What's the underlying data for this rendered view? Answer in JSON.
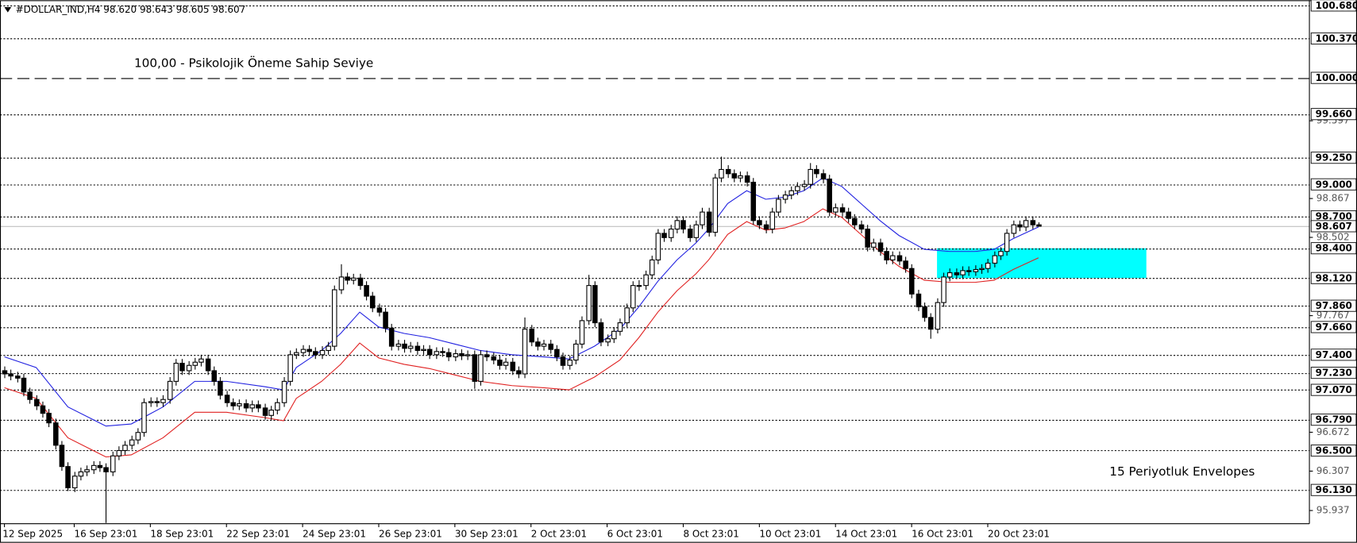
{
  "chart_data": {
    "type": "candlestick",
    "title": "#DOLLAR_IND,H4  98.620 98.643 98.605 98.607",
    "up_color": "#ffffff",
    "down_color": "#000000",
    "wick_color": "#000000",
    "ylim": [
      95.813,
      100.729
    ],
    "xlim": [
      -0.7,
      205.7
    ],
    "yticks": [
      99.597,
      98.867,
      98.502,
      97.767,
      96.672,
      96.307,
      95.937
    ],
    "levels": [
      {
        "value": 100.68,
        "label": "100.680",
        "style": "dotted"
      },
      {
        "value": 100.37,
        "label": "100.370",
        "style": "dotted"
      },
      {
        "value": 100,
        "label": "100.000",
        "style": "dashed"
      },
      {
        "value": 99.66,
        "label": "99.660",
        "style": "dotted"
      },
      {
        "value": 99.25,
        "label": "99.250",
        "style": "dotted"
      },
      {
        "value": 99,
        "label": "99.000",
        "style": "dotted"
      },
      {
        "value": 98.7,
        "label": "98.700",
        "style": "dotted"
      },
      {
        "value": 98.4,
        "label": "98.400",
        "style": "dotted"
      },
      {
        "value": 98.12,
        "label": "98.120",
        "style": "dotted"
      },
      {
        "value": 97.86,
        "label": "97.860",
        "style": "dotted"
      },
      {
        "value": 97.66,
        "label": "97.660",
        "style": "dotted"
      },
      {
        "value": 97.4,
        "label": "97.400",
        "style": "dotted"
      },
      {
        "value": 97.23,
        "label": "97.230",
        "style": "dotted"
      },
      {
        "value": 97.07,
        "label": "97.070",
        "style": "dotted"
      },
      {
        "value": 96.79,
        "label": "96.790",
        "style": "dotted"
      },
      {
        "value": 96.5,
        "label": "96.500",
        "style": "dotted"
      },
      {
        "value": 96.13,
        "label": "96.130",
        "style": "dotted"
      }
    ],
    "current": {
      "value": 98.607,
      "label": "98.607",
      "color": "#c0c0c0"
    },
    "xticks": [
      {
        "value": 0,
        "label": "12 Sep 2025"
      },
      {
        "value": 11,
        "label": "16 Sep 23:01"
      },
      {
        "value": 23,
        "label": "18 Sep 23:01"
      },
      {
        "value": 35,
        "label": "22 Sep 23:01"
      },
      {
        "value": 47,
        "label": "24 Sep 23:01"
      },
      {
        "value": 59,
        "label": "26 Sep 23:01"
      },
      {
        "value": 71,
        "label": "30 Sep 23:01"
      },
      {
        "value": 83,
        "label": "2 Oct 23:01"
      },
      {
        "value": 95,
        "label": "6 Oct 23:01"
      },
      {
        "value": 107,
        "label": "8 Oct 23:01"
      },
      {
        "value": 119,
        "label": "10 Oct 23:01"
      },
      {
        "value": 131,
        "label": "14 Oct 23:01"
      },
      {
        "value": 143,
        "label": "16 Oct 23:01"
      },
      {
        "value": 155,
        "label": "20 Oct 23:01"
      }
    ],
    "zone": {
      "color": "#00ffff",
      "ylim": [
        98.12,
        98.4
      ],
      "xlim": [
        147,
        180
      ]
    },
    "annotations": [
      {
        "text": "100,00 -  Psikolojik Öneme Sahip Seviye",
        "color": "#1a9a1a"
      },
      {
        "text": "15 Periyotluk Envelopes",
        "color": "#4a4aa8"
      }
    ],
    "envelopes": [
      {
        "color": "#2020e0",
        "x": [
          0,
          5,
          10,
          16,
          20,
          25,
          30,
          35,
          41,
          44,
          46,
          50,
          53,
          56,
          59,
          63,
          67,
          71,
          75,
          80,
          85,
          89,
          93,
          97,
          100,
          103,
          106,
          109,
          111,
          114,
          117,
          120,
          123,
          126,
          129,
          132,
          135,
          138,
          141,
          145,
          149,
          153,
          156,
          159,
          163
        ],
        "values": [
          97.38,
          97.28,
          96.91,
          96.73,
          96.75,
          96.91,
          97.15,
          97.15,
          97.1,
          97.07,
          97.28,
          97.44,
          97.6,
          97.8,
          97.66,
          97.6,
          97.56,
          97.5,
          97.44,
          97.4,
          97.38,
          97.36,
          97.48,
          97.64,
          97.85,
          98.09,
          98.29,
          98.45,
          98.58,
          98.82,
          98.94,
          98.86,
          98.88,
          98.94,
          99.06,
          98.98,
          98.82,
          98.66,
          98.52,
          98.39,
          98.37,
          98.37,
          98.39,
          98.49,
          98.6
        ]
      },
      {
        "color": "#e02020",
        "x": [
          0,
          5,
          10,
          16,
          20,
          25,
          30,
          35,
          41,
          44,
          46,
          50,
          53,
          56,
          59,
          63,
          67,
          71,
          75,
          80,
          85,
          89,
          93,
          97,
          100,
          103,
          106,
          109,
          111,
          114,
          117,
          120,
          123,
          126,
          129,
          132,
          135,
          138,
          141,
          145,
          149,
          153,
          156,
          159,
          163
        ],
        "values": [
          97.09,
          96.99,
          96.62,
          96.44,
          96.46,
          96.62,
          96.86,
          96.86,
          96.81,
          96.78,
          96.99,
          97.15,
          97.31,
          97.51,
          97.37,
          97.31,
          97.27,
          97.21,
          97.15,
          97.11,
          97.09,
          97.07,
          97.19,
          97.35,
          97.56,
          97.8,
          98,
          98.16,
          98.29,
          98.53,
          98.65,
          98.57,
          98.59,
          98.65,
          98.77,
          98.69,
          98.53,
          98.37,
          98.23,
          98.1,
          98.08,
          98.08,
          98.1,
          98.2,
          98.31
        ]
      }
    ],
    "ohlc": [
      [
        97.25,
        97.29,
        97.18,
        97.22
      ],
      [
        97.22,
        97.26,
        97.16,
        97.2
      ],
      [
        97.2,
        97.24,
        97.14,
        97.18
      ],
      [
        97.18,
        97.22,
        97.01,
        97.05
      ],
      [
        97.05,
        97.09,
        96.94,
        96.98
      ],
      [
        96.98,
        97.02,
        96.88,
        96.92
      ],
      [
        96.92,
        96.96,
        96.81,
        96.85
      ],
      [
        96.85,
        96.89,
        96.72,
        96.76
      ],
      [
        96.76,
        96.8,
        96.51,
        96.55
      ],
      [
        96.55,
        96.59,
        96.31,
        96.35
      ],
      [
        96.35,
        96.39,
        96.12,
        96.15
      ],
      [
        96.15,
        96.3,
        96.11,
        96.26
      ],
      [
        96.26,
        96.34,
        96.22,
        96.3
      ],
      [
        96.3,
        96.36,
        96.26,
        96.32
      ],
      [
        96.32,
        96.4,
        96.28,
        96.36
      ],
      [
        96.36,
        96.4,
        96.3,
        96.34
      ],
      [
        96.34,
        96.38,
        95.82,
        96.3
      ],
      [
        96.3,
        96.49,
        96.26,
        96.45
      ],
      [
        96.45,
        96.54,
        96.41,
        96.5
      ],
      [
        96.5,
        96.59,
        96.46,
        96.55
      ],
      [
        96.55,
        96.64,
        96.51,
        96.6
      ],
      [
        96.6,
        96.71,
        96.56,
        96.67
      ],
      [
        96.67,
        96.99,
        96.63,
        96.95
      ],
      [
        96.95,
        97,
        96.91,
        96.96
      ],
      [
        96.96,
        97,
        96.91,
        96.95
      ],
      [
        96.95,
        97.02,
        96.91,
        96.98
      ],
      [
        96.98,
        97.19,
        96.94,
        97.15
      ],
      [
        97.15,
        97.36,
        97.11,
        97.32
      ],
      [
        97.32,
        97.36,
        97.21,
        97.25
      ],
      [
        97.25,
        97.34,
        97.21,
        97.3
      ],
      [
        97.3,
        97.37,
        97.26,
        97.33
      ],
      [
        97.33,
        97.4,
        97.29,
        97.36
      ],
      [
        97.36,
        97.4,
        97.21,
        97.25
      ],
      [
        97.25,
        97.29,
        97.11,
        97.15
      ],
      [
        97.15,
        97.19,
        96.98,
        97.02
      ],
      [
        97.02,
        97.06,
        96.91,
        96.95
      ],
      [
        96.95,
        96.99,
        96.88,
        96.92
      ],
      [
        96.92,
        96.98,
        96.88,
        96.94
      ],
      [
        96.94,
        96.98,
        96.86,
        96.9
      ],
      [
        96.9,
        96.97,
        96.86,
        96.93
      ],
      [
        96.93,
        96.97,
        96.86,
        96.9
      ],
      [
        96.9,
        96.94,
        96.79,
        96.83
      ],
      [
        96.83,
        96.92,
        96.79,
        96.88
      ],
      [
        96.88,
        96.99,
        96.84,
        96.95
      ],
      [
        96.95,
        97.19,
        96.91,
        97.15
      ],
      [
        97.15,
        97.44,
        97.11,
        97.4
      ],
      [
        97.4,
        97.46,
        97.36,
        97.42
      ],
      [
        97.42,
        97.49,
        97.38,
        97.45
      ],
      [
        97.45,
        97.49,
        97.39,
        97.43
      ],
      [
        97.43,
        97.47,
        97.36,
        97.4
      ],
      [
        97.4,
        97.48,
        97.36,
        97.44
      ],
      [
        97.44,
        97.52,
        97.4,
        97.48
      ],
      [
        97.48,
        98.05,
        97.44,
        98.01
      ],
      [
        98.01,
        98.25,
        97.97,
        98.13
      ],
      [
        98.13,
        98.17,
        98.06,
        98.1
      ],
      [
        98.1,
        98.16,
        98.06,
        98.12
      ],
      [
        98.12,
        98.16,
        98.01,
        98.05
      ],
      [
        98.05,
        98.09,
        97.91,
        97.95
      ],
      [
        97.95,
        97.99,
        97.8,
        97.84
      ],
      [
        97.84,
        97.88,
        97.76,
        97.8
      ],
      [
        97.8,
        97.84,
        97.61,
        97.65
      ],
      [
        97.65,
        97.69,
        97.44,
        97.48
      ],
      [
        97.48,
        97.54,
        97.44,
        97.5
      ],
      [
        97.5,
        97.54,
        97.42,
        97.46
      ],
      [
        97.46,
        97.52,
        97.42,
        97.48
      ],
      [
        97.48,
        97.52,
        97.4,
        97.44
      ],
      [
        97.44,
        97.49,
        97.4,
        97.45
      ],
      [
        97.45,
        97.49,
        97.36,
        97.4
      ],
      [
        97.4,
        97.47,
        97.36,
        97.43
      ],
      [
        97.43,
        97.47,
        97.38,
        97.42
      ],
      [
        97.42,
        97.46,
        97.34,
        97.38
      ],
      [
        97.38,
        97.45,
        97.34,
        97.41
      ],
      [
        97.41,
        97.45,
        97.35,
        97.39
      ],
      [
        97.39,
        97.44,
        97.35,
        97.4
      ],
      [
        97.4,
        97.44,
        97.08,
        97.15
      ],
      [
        97.15,
        97.44,
        97.11,
        97.4
      ],
      [
        97.4,
        97.44,
        97.34,
        97.38
      ],
      [
        97.38,
        97.42,
        97.31,
        97.35
      ],
      [
        97.35,
        97.39,
        97.26,
        97.3
      ],
      [
        97.3,
        97.37,
        97.26,
        97.33
      ],
      [
        97.33,
        97.37,
        97.21,
        97.25
      ],
      [
        97.25,
        97.29,
        97.18,
        97.22
      ],
      [
        97.22,
        97.75,
        97.18,
        97.64
      ],
      [
        97.64,
        97.68,
        97.48,
        97.52
      ],
      [
        97.52,
        97.56,
        97.44,
        97.48
      ],
      [
        97.48,
        97.54,
        97.44,
        97.5
      ],
      [
        97.5,
        97.54,
        97.41,
        97.45
      ],
      [
        97.45,
        97.49,
        97.34,
        97.38
      ],
      [
        97.38,
        97.42,
        97.26,
        97.3
      ],
      [
        97.3,
        97.39,
        97.26,
        97.35
      ],
      [
        97.35,
        97.54,
        97.31,
        97.5
      ],
      [
        97.5,
        97.76,
        97.46,
        97.72
      ],
      [
        97.72,
        98.15,
        97.68,
        98.05
      ],
      [
        98.05,
        98.09,
        97.66,
        97.7
      ],
      [
        97.7,
        97.74,
        97.48,
        97.52
      ],
      [
        97.52,
        97.59,
        97.48,
        97.55
      ],
      [
        97.55,
        97.66,
        97.51,
        97.62
      ],
      [
        97.62,
        97.74,
        97.58,
        97.7
      ],
      [
        97.7,
        97.88,
        97.66,
        97.84
      ],
      [
        97.84,
        98.09,
        97.8,
        98.05
      ],
      [
        98.05,
        98.1,
        98,
        98.05
      ],
      [
        98.05,
        98.19,
        98.01,
        98.15
      ],
      [
        98.15,
        98.33,
        98.11,
        98.29
      ],
      [
        98.29,
        98.58,
        98.25,
        98.54
      ],
      [
        98.54,
        98.58,
        98.46,
        98.5
      ],
      [
        98.5,
        98.62,
        98.46,
        98.58
      ],
      [
        98.58,
        98.7,
        98.54,
        98.66
      ],
      [
        98.66,
        98.7,
        98.54,
        98.58
      ],
      [
        98.58,
        98.62,
        98.46,
        98.5
      ],
      [
        98.5,
        98.66,
        98.46,
        98.62
      ],
      [
        98.62,
        98.78,
        98.58,
        98.74
      ],
      [
        98.74,
        98.78,
        98.51,
        98.55
      ],
      [
        98.55,
        99.1,
        98.51,
        99.06
      ],
      [
        99.06,
        99.26,
        99.02,
        99.14
      ],
      [
        99.14,
        99.18,
        99.06,
        99.1
      ],
      [
        99.1,
        99.14,
        99.02,
        99.06
      ],
      [
        99.06,
        99.12,
        99.02,
        99.08
      ],
      [
        99.08,
        99.12,
        98.98,
        99.02
      ],
      [
        99.02,
        99.06,
        98.62,
        98.66
      ],
      [
        98.66,
        98.7,
        98.58,
        98.62
      ],
      [
        98.62,
        98.66,
        98.54,
        98.58
      ],
      [
        98.58,
        98.78,
        98.54,
        98.74
      ],
      [
        98.74,
        98.9,
        98.7,
        98.86
      ],
      [
        98.86,
        98.94,
        98.82,
        98.9
      ],
      [
        98.9,
        98.98,
        98.86,
        98.94
      ],
      [
        98.94,
        99.02,
        98.9,
        98.98
      ],
      [
        98.98,
        99.04,
        98.94,
        99
      ],
      [
        99,
        99.2,
        98.96,
        99.14
      ],
      [
        99.14,
        99.18,
        99.06,
        99.1
      ],
      [
        99.1,
        99.14,
        99.01,
        99.05
      ],
      [
        99.05,
        99.09,
        98.7,
        98.74
      ],
      [
        98.74,
        98.82,
        98.7,
        98.78
      ],
      [
        98.78,
        98.82,
        98.7,
        98.74
      ],
      [
        98.74,
        98.78,
        98.64,
        98.68
      ],
      [
        98.68,
        98.72,
        98.58,
        98.62
      ],
      [
        98.62,
        98.66,
        98.54,
        98.58
      ],
      [
        98.58,
        98.62,
        98.37,
        98.41
      ],
      [
        98.41,
        98.49,
        98.37,
        98.45
      ],
      [
        98.45,
        98.49,
        98.33,
        98.37
      ],
      [
        98.37,
        98.41,
        98.25,
        98.29
      ],
      [
        98.29,
        98.37,
        98.25,
        98.33
      ],
      [
        98.33,
        98.37,
        98.24,
        98.28
      ],
      [
        98.28,
        98.32,
        98.17,
        98.21
      ],
      [
        98.21,
        98.25,
        97.93,
        97.97
      ],
      [
        97.97,
        98.01,
        97.81,
        97.85
      ],
      [
        97.85,
        97.89,
        97.71,
        97.75
      ],
      [
        97.75,
        97.79,
        97.55,
        97.64
      ],
      [
        97.64,
        97.93,
        97.6,
        97.89
      ],
      [
        97.89,
        98.17,
        97.85,
        98.13
      ],
      [
        98.13,
        98.21,
        98.09,
        98.17
      ],
      [
        98.17,
        98.21,
        98.11,
        98.15
      ],
      [
        98.15,
        98.23,
        98.11,
        98.19
      ],
      [
        98.19,
        98.23,
        98.14,
        98.18
      ],
      [
        98.18,
        98.24,
        98.14,
        98.2
      ],
      [
        98.2,
        98.25,
        98.16,
        98.21
      ],
      [
        98.21,
        98.3,
        98.17,
        98.26
      ],
      [
        98.26,
        98.37,
        98.22,
        98.33
      ],
      [
        98.33,
        98.41,
        98.29,
        98.37
      ],
      [
        98.37,
        98.58,
        98.33,
        98.54
      ],
      [
        98.54,
        98.66,
        98.5,
        98.62
      ],
      [
        98.62,
        98.66,
        98.56,
        98.6
      ],
      [
        98.6,
        98.7,
        98.56,
        98.66
      ],
      [
        98.66,
        98.7,
        98.58,
        98.62
      ],
      [
        98.62,
        98.643,
        98.605,
        98.607
      ]
    ]
  }
}
